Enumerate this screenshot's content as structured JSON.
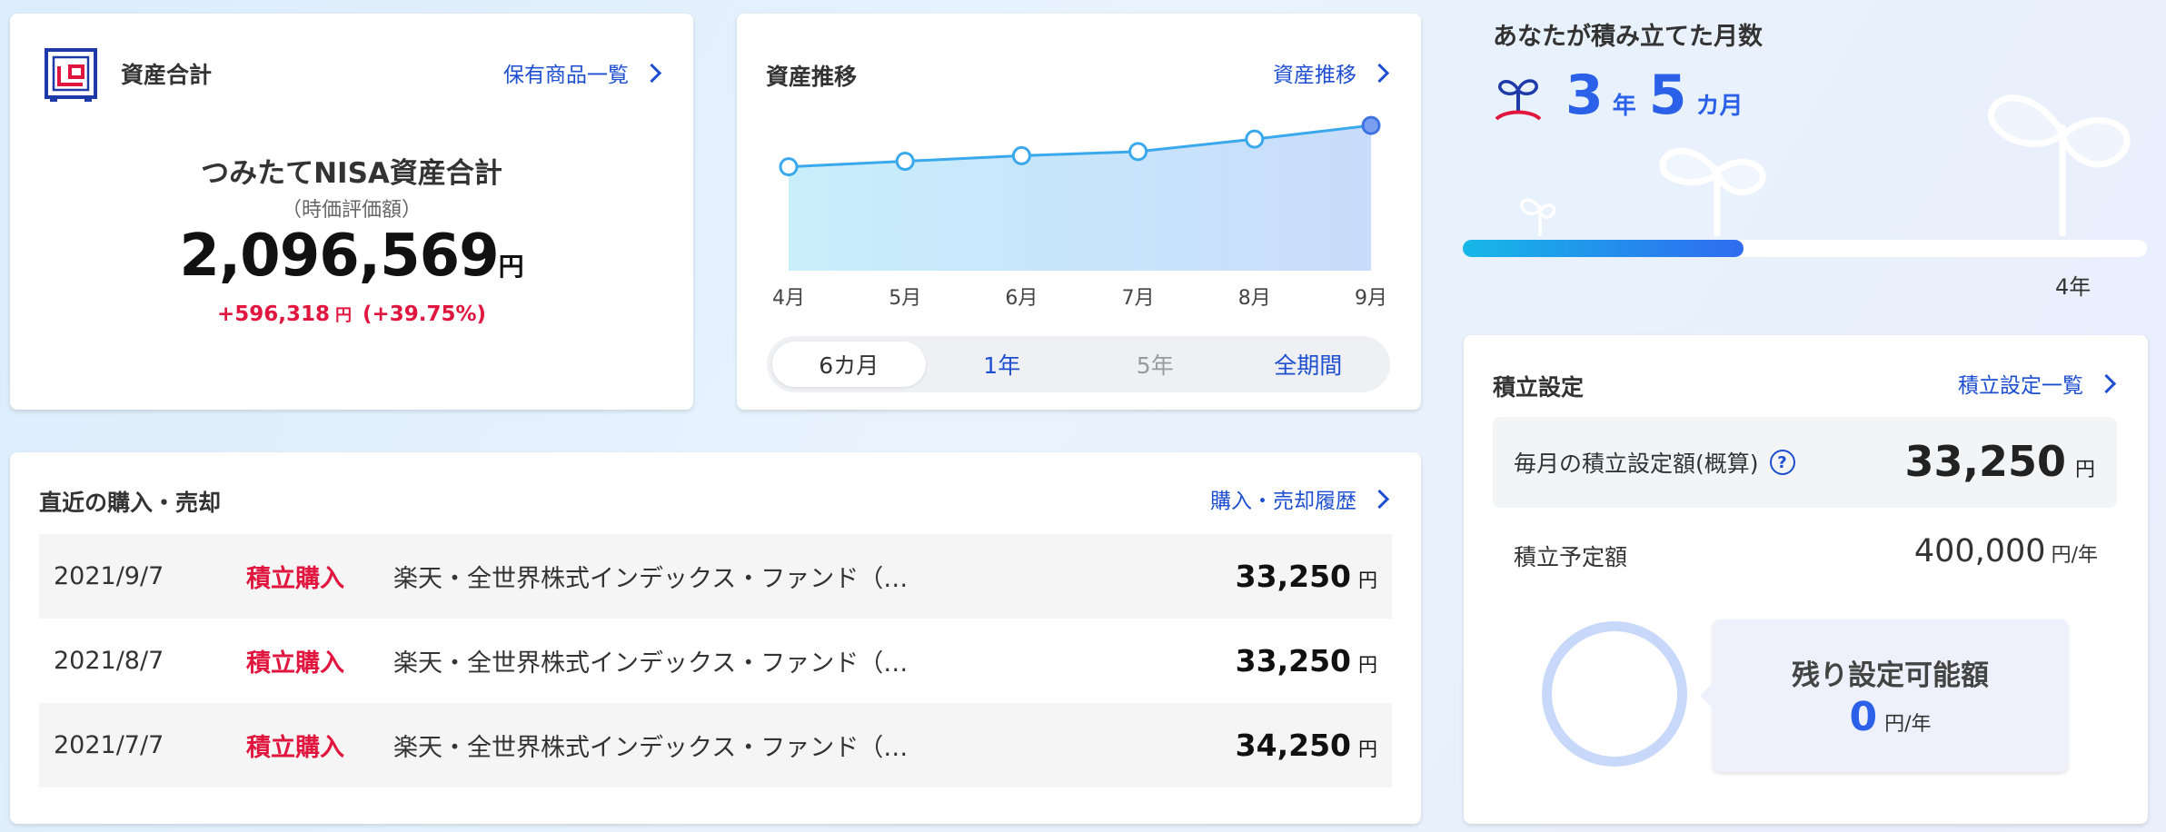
{
  "asset_total": {
    "title": "資産合計",
    "link_label": "保有商品一覧",
    "heading": "つみたてNISA資産合計",
    "subheading": "（時価評価額）",
    "amount": "2,096,569",
    "amount_unit": "円",
    "gain": "+596,318",
    "gain_unit": "円",
    "gain_pct": "(+39.75%)",
    "logo_icon": "safe-logo-icon"
  },
  "asset_trend": {
    "title": "資産推移",
    "link_label": "資産推移",
    "periods": [
      {
        "label": "6カ月",
        "state": "active"
      },
      {
        "label": "1年",
        "state": "normal"
      },
      {
        "label": "5年",
        "state": "disabled"
      },
      {
        "label": "全期間",
        "state": "normal"
      }
    ]
  },
  "chart_data": {
    "type": "area",
    "categories": [
      "4月",
      "5月",
      "6月",
      "7月",
      "8月",
      "9月"
    ],
    "values": [
      1500000,
      1580000,
      1660000,
      1720000,
      1900000,
      2096569
    ],
    "ylim": [
      0,
      2400000
    ],
    "grid": false,
    "line_color": "#3aa8ec",
    "fill_color": "#c6e6fa",
    "last_point_color": "#7a9ff0"
  },
  "recent": {
    "title": "直近の購入・売却",
    "link_label": "購入・売却履歴",
    "rows": [
      {
        "date": "2021/9/7",
        "type": "積立購入",
        "fund": "楽天・全世界株式インデックス・ファンド（…",
        "amount": "33,250",
        "unit": "円"
      },
      {
        "date": "2021/8/7",
        "type": "積立購入",
        "fund": "楽天・全世界株式インデックス・ファンド（…",
        "amount": "33,250",
        "unit": "円"
      },
      {
        "date": "2021/7/7",
        "type": "積立購入",
        "fund": "楽天・全世界株式インデックス・ファンド（…",
        "amount": "34,250",
        "unit": "円"
      }
    ]
  },
  "months": {
    "title": "あなたが積み立てた月数",
    "years": "3",
    "years_unit": "年",
    "months": "5",
    "months_unit": "カ月",
    "progress_fraction": 0.41,
    "goal_label": "4年"
  },
  "savings": {
    "title": "積立設定",
    "link_label": "積立設定一覧",
    "monthly_label": "毎月の積立設定額(概算)",
    "monthly_amount": "33,250",
    "monthly_unit": "円",
    "plan_label": "積立予定額",
    "plan_amount": "400,000",
    "plan_unit": "円/年",
    "remain_title": "残り設定可能額",
    "remain_amount": "0",
    "remain_unit": "円/年"
  },
  "colors": {
    "link": "#1d4fd0",
    "accent_red": "#e0163f",
    "accent_blue": "#2b61e8"
  }
}
